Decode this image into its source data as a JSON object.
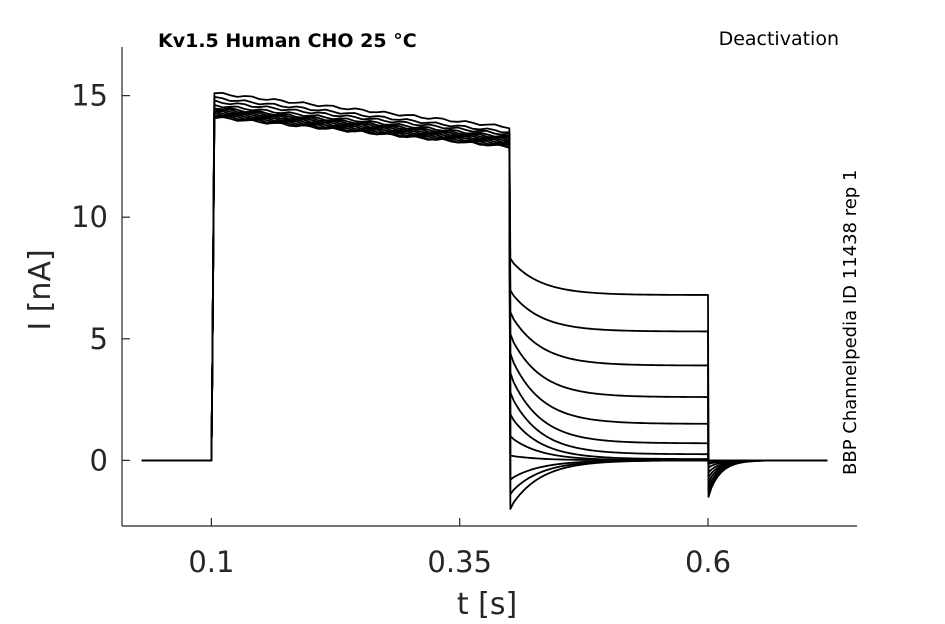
{
  "chart_data": {
    "type": "line",
    "title": "Kv1.5  Human  CHO  25 °C",
    "protocol_label": "Deactivation",
    "side_label": "BBP Channelpedia ID 11438 rep 1",
    "xlabel": "t [s]",
    "ylabel": "I [nA]",
    "xlim": [
      0.01,
      0.75
    ],
    "ylim": [
      -2.7,
      17.0
    ],
    "x_ticks": [
      0.1,
      0.35,
      0.6
    ],
    "x_tick_labels": [
      "0.1",
      "0.35",
      "0.6"
    ],
    "y_ticks": [
      0,
      5,
      10,
      15
    ],
    "y_tick_labels": [
      "0",
      "5",
      "10",
      "15"
    ],
    "grid": false,
    "legend": "none",
    "protocol": {
      "baseline_start": 0.03,
      "step_on": 0.1,
      "step_off": 0.4,
      "tail_off": 0.6,
      "end": 0.72
    },
    "sweeps": [
      {
        "prepulse_start": 15.1,
        "prepulse_end": 13.7,
        "tail_start": 8.3,
        "tail_end": 6.8,
        "after_peak": -1.5
      },
      {
        "prepulse_start": 14.9,
        "prepulse_end": 13.5,
        "tail_start": 7.0,
        "tail_end": 5.3,
        "after_peak": -1.3
      },
      {
        "prepulse_start": 14.75,
        "prepulse_end": 13.4,
        "tail_start": 6.1,
        "tail_end": 3.9,
        "after_peak": -1.1
      },
      {
        "prepulse_start": 14.6,
        "prepulse_end": 13.3,
        "tail_start": 5.2,
        "tail_end": 2.6,
        "after_peak": -0.9
      },
      {
        "prepulse_start": 14.5,
        "prepulse_end": 13.25,
        "tail_start": 4.4,
        "tail_end": 1.5,
        "after_peak": -0.7
      },
      {
        "prepulse_start": 14.45,
        "prepulse_end": 13.2,
        "tail_start": 3.6,
        "tail_end": 0.7,
        "after_peak": -0.5
      },
      {
        "prepulse_start": 14.4,
        "prepulse_end": 13.15,
        "tail_start": 2.8,
        "tail_end": 0.25,
        "after_peak": -0.3
      },
      {
        "prepulse_start": 14.35,
        "prepulse_end": 13.1,
        "tail_start": 1.9,
        "tail_end": 0.05,
        "after_peak": -0.15
      },
      {
        "prepulse_start": 14.3,
        "prepulse_end": 13.05,
        "tail_start": 1.0,
        "tail_end": 0.0,
        "after_peak": -0.1
      },
      {
        "prepulse_start": 14.25,
        "prepulse_end": 13.0,
        "tail_start": 0.2,
        "tail_end": 0.0,
        "after_peak": 0.0
      },
      {
        "prepulse_start": 14.2,
        "prepulse_end": 12.95,
        "tail_start": -0.8,
        "tail_end": 0.0,
        "after_peak": 0.0
      },
      {
        "prepulse_start": 14.15,
        "prepulse_end": 12.9,
        "tail_start": -1.4,
        "tail_end": 0.0,
        "after_peak": 0.0
      },
      {
        "prepulse_start": 14.1,
        "prepulse_end": 12.9,
        "tail_start": -2.0,
        "tail_end": 0.0,
        "after_peak": 0.0
      }
    ]
  }
}
